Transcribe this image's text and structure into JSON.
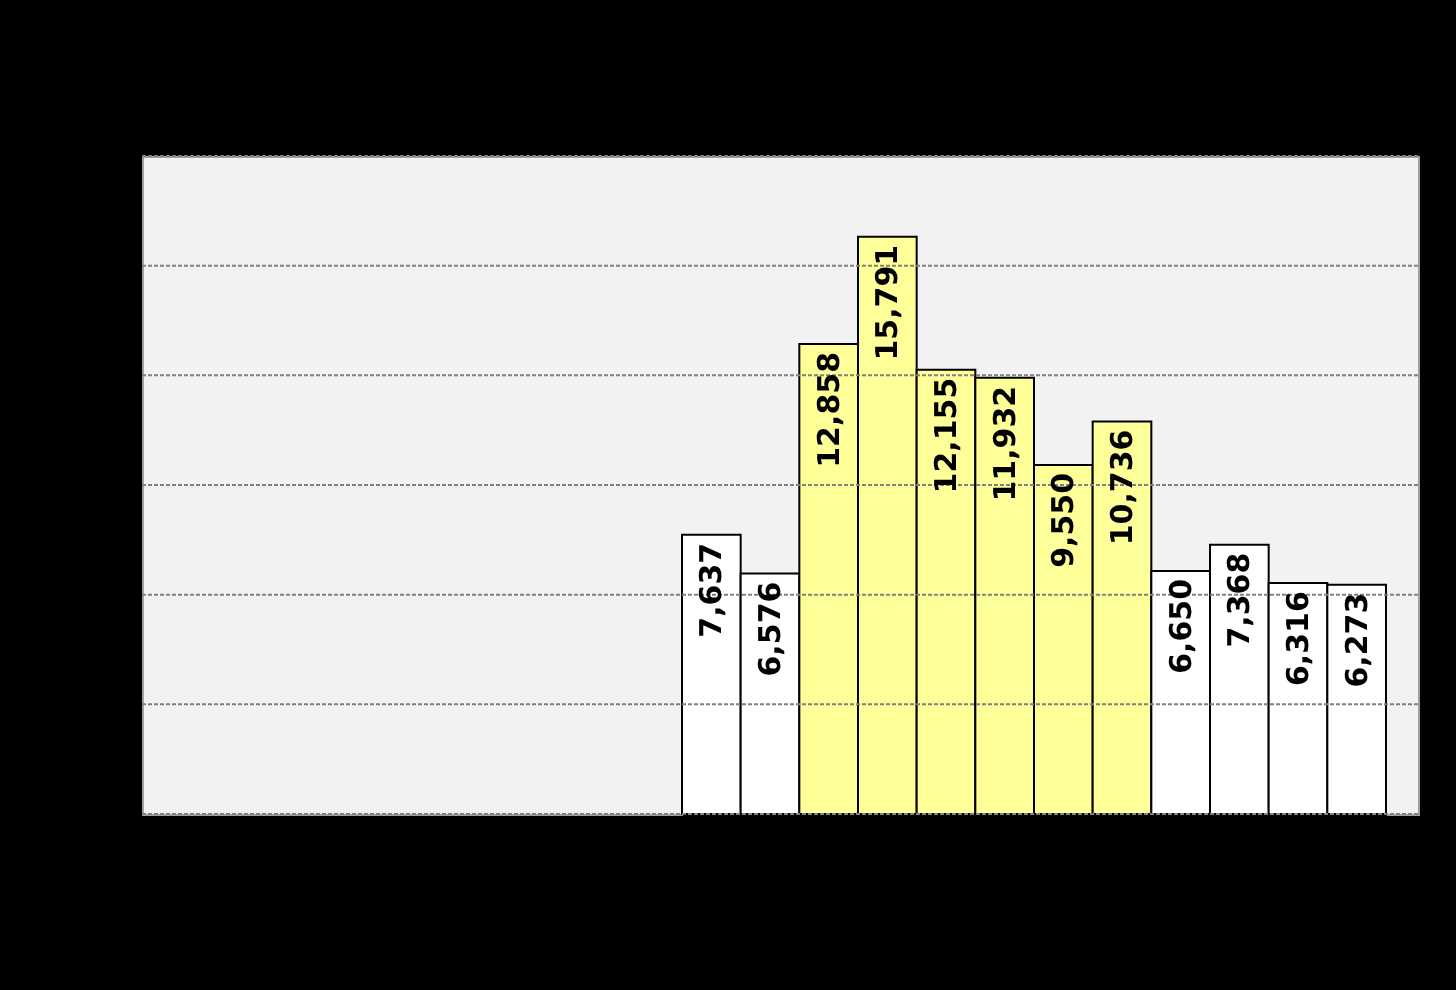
{
  "chart_data": {
    "type": "bar",
    "categories": [
      null,
      null,
      null,
      null,
      null,
      null,
      null,
      null,
      null,
      null,
      null,
      null
    ],
    "values": [
      7637,
      6576,
      12858,
      15791,
      12155,
      11932,
      9550,
      10736,
      6650,
      7368,
      6316,
      6273
    ],
    "colors": [
      "#ffffff",
      "#ffffff",
      "#ffff99",
      "#ffff99",
      "#ffff99",
      "#ffff99",
      "#ffff99",
      "#ffff99",
      "#ffffff",
      "#ffffff",
      "#ffffff",
      "#ffffff"
    ],
    "ylim": [
      0,
      18000
    ],
    "yticks": [
      {
        "value": 0,
        "label": null
      },
      {
        "value": 3000,
        "label": null
      },
      {
        "value": 6000,
        "label": null
      },
      {
        "value": 9000,
        "label": null
      },
      {
        "value": 12000,
        "label": null
      },
      {
        "value": 15000,
        "label": null
      },
      {
        "value": 18000,
        "label": null
      }
    ],
    "value_labels": [
      "7,637",
      "6,576",
      "12,858",
      "15,791",
      "12,155",
      "11,932",
      "9,550",
      "10,736",
      "6,650",
      "7,368",
      "6,316",
      "6,273"
    ],
    "grid": "y"
  }
}
